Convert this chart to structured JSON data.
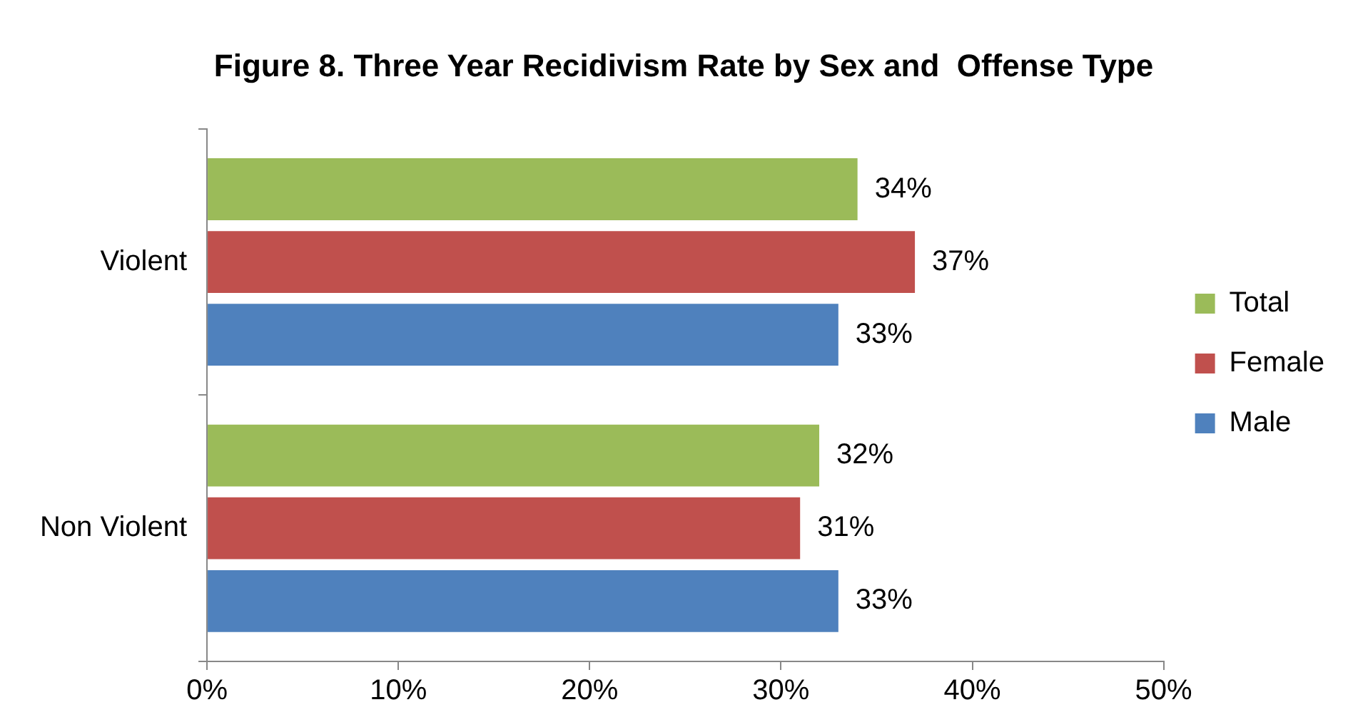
{
  "chart_data": {
    "type": "bar",
    "orientation": "horizontal",
    "title": "Figure 8. Three Year Recidivism Rate by Sex and  Offense Type",
    "categories": [
      "Violent",
      "Non Violent"
    ],
    "series": [
      {
        "name": "Total",
        "color": "#9bbb59",
        "values": [
          34,
          32
        ],
        "value_labels": [
          "34%",
          "32%"
        ]
      },
      {
        "name": "Female",
        "color": "#c0504d",
        "values": [
          37,
          31
        ],
        "value_labels": [
          "37%",
          "31%"
        ]
      },
      {
        "name": "Male",
        "color": "#4f81bd",
        "values": [
          33,
          33
        ],
        "value_labels": [
          "33%",
          "33%"
        ]
      }
    ],
    "xlim": [
      0,
      50
    ],
    "xticks": [
      {
        "value": 0,
        "label": "0%"
      },
      {
        "value": 10,
        "label": "10%"
      },
      {
        "value": 20,
        "label": "20%"
      },
      {
        "value": 30,
        "label": "30%"
      },
      {
        "value": 40,
        "label": "40%"
      },
      {
        "value": 50,
        "label": "50%"
      }
    ],
    "grid": false,
    "legend": "right"
  }
}
